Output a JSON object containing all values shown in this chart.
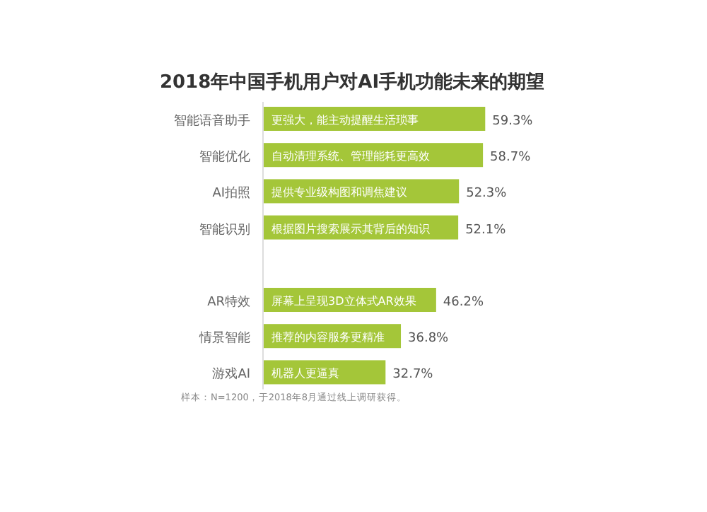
{
  "chart_data": {
    "type": "bar",
    "orientation": "horizontal",
    "title": "2018年中国手机用户对AI手机功能未来的期望",
    "categories": [
      "智能语音助手",
      "智能优化",
      "AI拍照",
      "智能识别",
      null,
      "AR特效",
      "情景智能",
      "游戏AI"
    ],
    "values": [
      59.3,
      58.7,
      52.3,
      52.1,
      null,
      46.2,
      36.8,
      32.7
    ],
    "value_labels": [
      "59.3%",
      "58.7%",
      "52.3%",
      "52.1%",
      null,
      "46.2%",
      "36.8%",
      "32.7%"
    ],
    "color": "#a4c639",
    "annotations": [
      {
        "text": "更强大，能主动提醒生活琐事",
        "y": "智能语音助手"
      },
      {
        "text": "自动清理系统、管理能耗更高效",
        "y": "智能优化"
      },
      {
        "text": "提供专业级构图和调焦建议",
        "y": "AI拍照"
      },
      {
        "text": "根据图片搜索展示其背后的知识",
        "y": "智能识别"
      },
      {
        "text": "屏幕上呈现3D立体式AR效果",
        "y": "AR特效"
      },
      {
        "text": "推荐的内容服务更精准",
        "y": "情景智能"
      },
      {
        "text": "机器人更逼真",
        "y": "游戏AI"
      },
      "样本：N=1200，于2018年8月通过线上调研获得。"
    ]
  }
}
